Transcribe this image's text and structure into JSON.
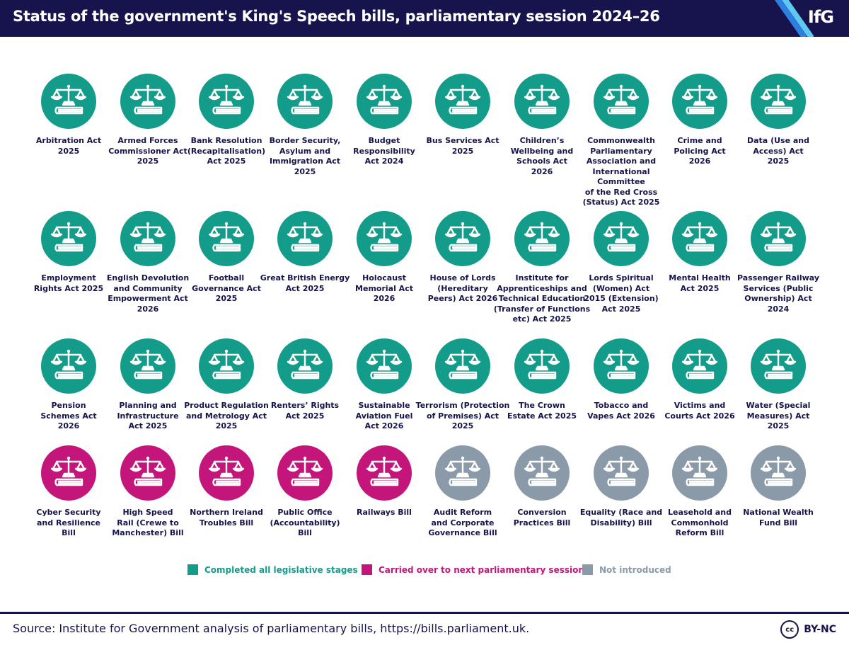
{
  "title": "Status of the government's King's Speech bills, parliamentary session 2024–26",
  "logo": "IfG",
  "icon_name": "scales-and-book-icon",
  "colors": {
    "completed": "#139c8a",
    "carried_over": "#c4157a",
    "not_introduced": "#8a9aa8",
    "header_bg": "#16134d",
    "text": "#16134d"
  },
  "rows": [
    [
      {
        "label": "Arbitration Act\n2025",
        "status": "completed"
      },
      {
        "label": "Armed Forces\nCommissioner Act\n2025",
        "status": "completed"
      },
      {
        "label": "Bank Resolution\n(Recapitalisation)\nAct 2025",
        "status": "completed"
      },
      {
        "label": "Border Security,\nAsylum and\nImmigration Act\n2025",
        "status": "completed"
      },
      {
        "label": "Budget\nResponsibility\nAct 2024",
        "status": "completed"
      },
      {
        "label": "Bus Services Act\n2025",
        "status": "completed"
      },
      {
        "label": "Children’s\nWellbeing and\nSchools Act\n2026",
        "status": "completed"
      },
      {
        "label": "Commonwealth\nParliamentary\nAssociation and\nInternational Committee\nof the Red Cross\n(Status) Act 2025",
        "status": "completed"
      },
      {
        "label": "Crime and\nPolicing Act\n2026",
        "status": "completed"
      },
      {
        "label": "Data (Use and\nAccess) Act\n2025",
        "status": "completed"
      }
    ],
    [
      {
        "label": "Employment\nRights Act 2025",
        "status": "completed"
      },
      {
        "label": "English Devolution\nand Community\nEmpowerment Act\n2026",
        "status": "completed"
      },
      {
        "label": "Football\nGovernance Act\n2025",
        "status": "completed"
      },
      {
        "label": "Great British Energy\nAct 2025",
        "status": "completed"
      },
      {
        "label": "Holocaust\nMemorial Act\n2026",
        "status": "completed"
      },
      {
        "label": "House of Lords\n(Hereditary\nPeers) Act 2026",
        "status": "completed"
      },
      {
        "label": "Institute for\nApprenticeships and\nTechnical Education\n(Transfer of Functions\netc) Act 2025",
        "status": "completed"
      },
      {
        "label": "Lords Spiritual\n(Women) Act\n2015 (Extension)\nAct 2025",
        "status": "completed"
      },
      {
        "label": "Mental Health\nAct 2025",
        "status": "completed"
      },
      {
        "label": "Passenger Railway\nServices (Public\nOwnership) Act\n2024",
        "status": "completed"
      }
    ],
    [
      {
        "label": "Pension\nSchemes Act\n2026",
        "status": "completed"
      },
      {
        "label": "Planning and\nInfrastructure\nAct 2025",
        "status": "completed"
      },
      {
        "label": "Product Regulation\nand Metrology Act\n2025",
        "status": "completed"
      },
      {
        "label": "Renters’ Rights\nAct 2025",
        "status": "completed"
      },
      {
        "label": "Sustainable\nAviation Fuel\nAct 2026",
        "status": "completed"
      },
      {
        "label": "Terrorism (Protection\nof Premises) Act\n2025",
        "status": "completed"
      },
      {
        "label": "The Crown\nEstate Act 2025",
        "status": "completed"
      },
      {
        "label": "Tobacco and\nVapes Act 2026",
        "status": "completed"
      },
      {
        "label": "Victims and\nCourts Act 2026",
        "status": "completed"
      },
      {
        "label": "Water (Special\nMeasures) Act\n2025",
        "status": "completed"
      }
    ],
    [
      {
        "label": "Cyber Security\nand Resilience\nBill",
        "status": "carried_over"
      },
      {
        "label": "High Speed\nRail (Crewe to\nManchester) Bill",
        "status": "carried_over"
      },
      {
        "label": "Northern Ireland\nTroubles Bill",
        "status": "carried_over"
      },
      {
        "label": "Public Office\n(Accountability)\nBill",
        "status": "carried_over"
      },
      {
        "label": "Railways Bill",
        "status": "carried_over"
      },
      {
        "label": "Audit Reform\nand Corporate\nGovernance Bill",
        "status": "not_introduced"
      },
      {
        "label": "Conversion\nPractices Bill",
        "status": "not_introduced"
      },
      {
        "label": "Equality (Race and\nDisability) Bill",
        "status": "not_introduced"
      },
      {
        "label": "Leasehold and\nCommonhold\nReform Bill",
        "status": "not_introduced"
      },
      {
        "label": "National Wealth\nFund Bill",
        "status": "not_introduced"
      }
    ]
  ],
  "legend": [
    {
      "key": "completed",
      "label": "Completed all legislative stages"
    },
    {
      "key": "carried_over",
      "label": "Carried over to next parliamentary session"
    },
    {
      "key": "not_introduced",
      "label": "Not introduced"
    }
  ],
  "source": "Source: Institute for Government analysis of parliamentary bills, https://bills.parliament.uk.",
  "license": {
    "badge": "cc",
    "text": "BY-NC"
  }
}
